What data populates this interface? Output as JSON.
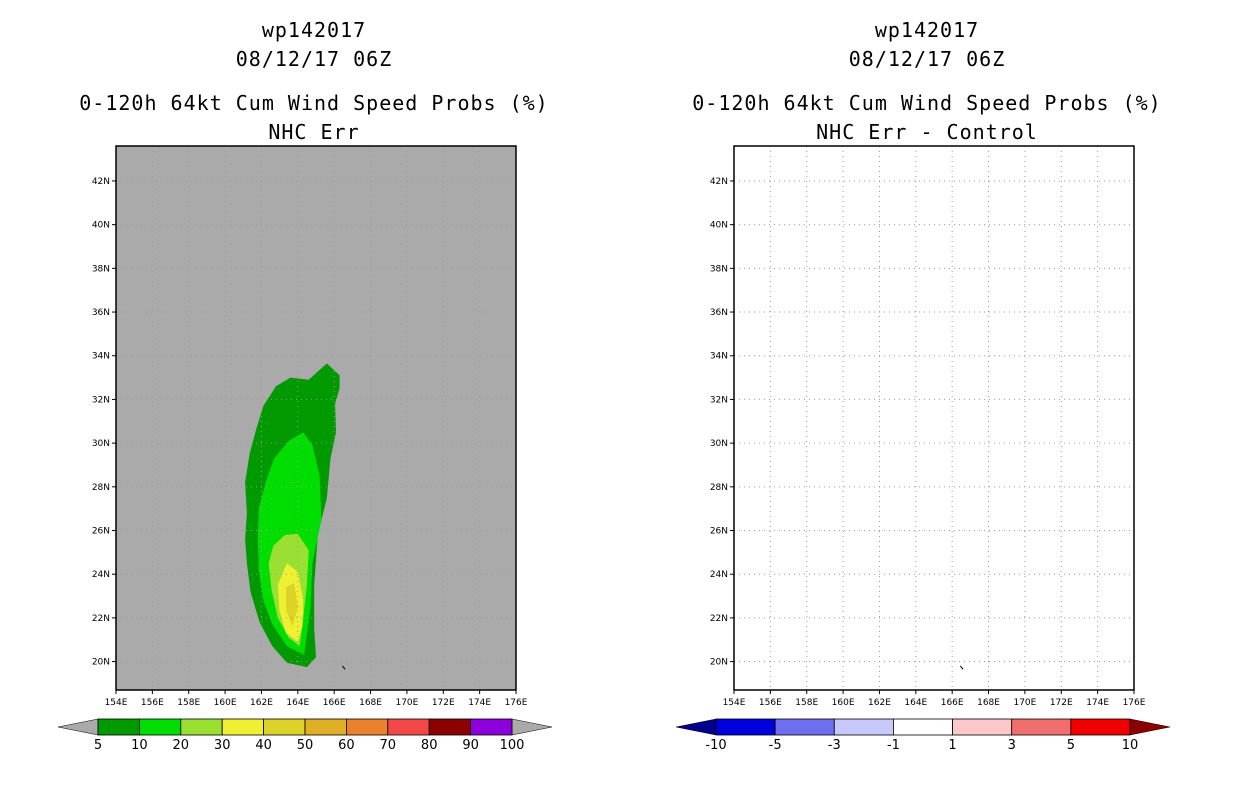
{
  "chart_data": [
    {
      "type": "heatmap",
      "storm_id": "wp142017",
      "datetime": "08/12/17 06Z",
      "title": "0-120h 64kt Cum Wind Speed Probs (%)",
      "subtitle": "NHC Err",
      "x_ticks": [
        "154E",
        "156E",
        "158E",
        "160E",
        "162E",
        "164E",
        "166E",
        "168E",
        "170E",
        "172E",
        "174E",
        "176E"
      ],
      "y_ticks": [
        "20N",
        "22N",
        "24N",
        "26N",
        "28N",
        "30N",
        "32N",
        "34N",
        "36N",
        "38N",
        "40N",
        "42N"
      ],
      "xlim": [
        154,
        176
      ],
      "ylim": [
        18.7,
        43.6
      ],
      "background_color": "#aaaaaa",
      "gridlines": true,
      "legend": {
        "position": "bottom",
        "labels": [
          "5",
          "10",
          "20",
          "30",
          "40",
          "50",
          "60",
          "70",
          "80",
          "90",
          "100"
        ],
        "colors": [
          "#009900",
          "#00dd00",
          "#99e033",
          "#f0f032",
          "#dcd228",
          "#e0af28",
          "#e9822a",
          "#f24848",
          "#8c0000",
          "#8c00dc"
        ],
        "end_color": "#aaaaaa"
      },
      "contours": [
        {
          "level": 5,
          "color": "#009900",
          "polygon": [
            [
              164.5,
              19.75
            ],
            [
              163.4,
              19.95
            ],
            [
              162.6,
              20.7
            ],
            [
              161.9,
              21.8
            ],
            [
              161.4,
              23.2
            ],
            [
              161.2,
              24.5
            ],
            [
              161.1,
              25.6
            ],
            [
              161.2,
              26.8
            ],
            [
              161.1,
              28.2
            ],
            [
              161.35,
              29.5
            ],
            [
              161.7,
              30.6
            ],
            [
              162.1,
              31.7
            ],
            [
              162.8,
              32.6
            ],
            [
              163.6,
              33.0
            ],
            [
              164.6,
              32.9
            ],
            [
              165.6,
              33.65
            ],
            [
              166.3,
              33.1
            ],
            [
              166.3,
              32.5
            ],
            [
              166.05,
              31.8
            ],
            [
              166.1,
              30.5
            ],
            [
              165.8,
              29.3
            ],
            [
              165.6,
              27.5
            ],
            [
              165.1,
              25.8
            ],
            [
              164.9,
              23.5
            ],
            [
              164.9,
              21.5
            ],
            [
              165.0,
              20.2
            ]
          ]
        },
        {
          "level": 10,
          "color": "#00dd00",
          "polygon": [
            [
              164.35,
              20.3
            ],
            [
              163.4,
              20.7
            ],
            [
              162.6,
              21.7
            ],
            [
              162.1,
              22.8
            ],
            [
              161.85,
              24.2
            ],
            [
              161.8,
              25.8
            ],
            [
              161.85,
              27.0
            ],
            [
              162.3,
              28.4
            ],
            [
              162.7,
              29.3
            ],
            [
              163.5,
              30.1
            ],
            [
              164.3,
              30.5
            ],
            [
              164.8,
              29.9
            ],
            [
              165.2,
              28.5
            ],
            [
              165.3,
              26.5
            ],
            [
              164.8,
              24.5
            ],
            [
              164.7,
              22.5
            ]
          ]
        },
        {
          "level": 20,
          "color": "#99e033",
          "polygon": [
            [
              164.1,
              20.7
            ],
            [
              163.5,
              21.1
            ],
            [
              162.9,
              22.0
            ],
            [
              162.55,
              23.3
            ],
            [
              162.4,
              24.5
            ],
            [
              162.65,
              25.3
            ],
            [
              163.3,
              25.8
            ],
            [
              164.0,
              25.85
            ],
            [
              164.6,
              25.1
            ],
            [
              164.5,
              23.5
            ],
            [
              164.3,
              22.0
            ]
          ]
        },
        {
          "level": 30,
          "color": "#f0f032",
          "polygon": [
            [
              164.0,
              20.9
            ],
            [
              163.35,
              21.3
            ],
            [
              163.0,
              22.3
            ],
            [
              162.9,
              23.5
            ],
            [
              163.4,
              24.5
            ],
            [
              164.0,
              24.1
            ],
            [
              164.3,
              22.8
            ],
            [
              164.25,
              21.6
            ]
          ]
        },
        {
          "level": 40,
          "color": "#dcd228",
          "polygon": [
            [
              163.7,
              21.6
            ],
            [
              163.35,
              22.4
            ],
            [
              163.35,
              23.4
            ],
            [
              163.8,
              23.6
            ],
            [
              164.0,
              22.5
            ]
          ]
        }
      ]
    },
    {
      "type": "heatmap",
      "storm_id": "wp142017",
      "datetime": "08/12/17 06Z",
      "title": "0-120h 64kt Cum Wind Speed Probs (%)",
      "subtitle": "NHC Err - Control",
      "x_ticks": [
        "154E",
        "156E",
        "158E",
        "160E",
        "162E",
        "164E",
        "166E",
        "168E",
        "170E",
        "172E",
        "174E",
        "176E"
      ],
      "y_ticks": [
        "20N",
        "22N",
        "24N",
        "26N",
        "28N",
        "30N",
        "32N",
        "34N",
        "36N",
        "38N",
        "40N",
        "42N"
      ],
      "xlim": [
        154,
        176
      ],
      "ylim": [
        18.7,
        43.6
      ],
      "background_color": "#ffffff",
      "gridlines": true,
      "legend": {
        "position": "bottom",
        "labels": [
          "-10",
          "-5",
          "-3",
          "-1",
          "1",
          "3",
          "5",
          "10"
        ],
        "colors": [
          "#0000dd",
          "#6e6ef0",
          "#c8c8fa",
          "#ffffff",
          "#fac8c8",
          "#f06e6e",
          "#f00000"
        ],
        "low_end_color": "#00008c",
        "high_end_color": "#8c0000"
      },
      "contours": []
    }
  ]
}
